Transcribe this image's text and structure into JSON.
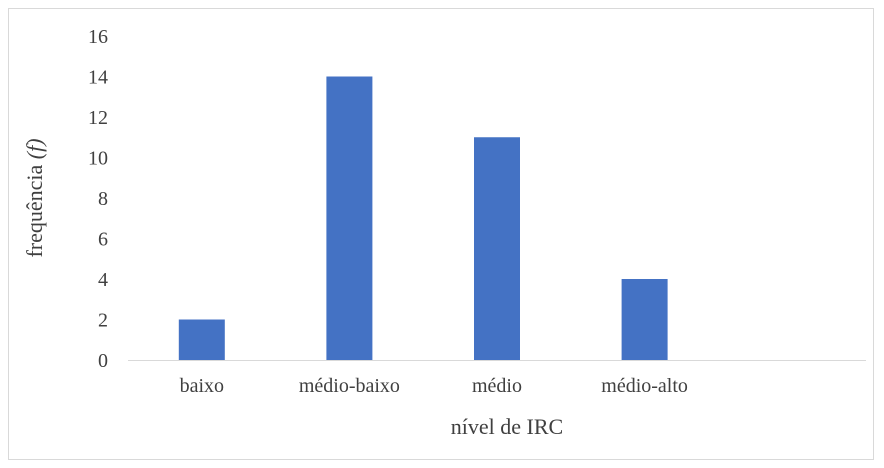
{
  "chart_data": {
    "type": "bar",
    "categories": [
      "baixo",
      "médio-baixo",
      "médio",
      "médio-alto",
      ""
    ],
    "values": [
      2,
      14,
      11,
      4,
      null
    ],
    "xlabel": "nível de IRC",
    "ylabel_text": "frequência",
    "ylabel_symbol": "(f)",
    "ylim": [
      0,
      16
    ],
    "yticks": [
      0,
      2,
      4,
      6,
      8,
      10,
      12,
      14,
      16
    ],
    "grid": false,
    "legend": "none",
    "bar_color": "#4472c4"
  }
}
